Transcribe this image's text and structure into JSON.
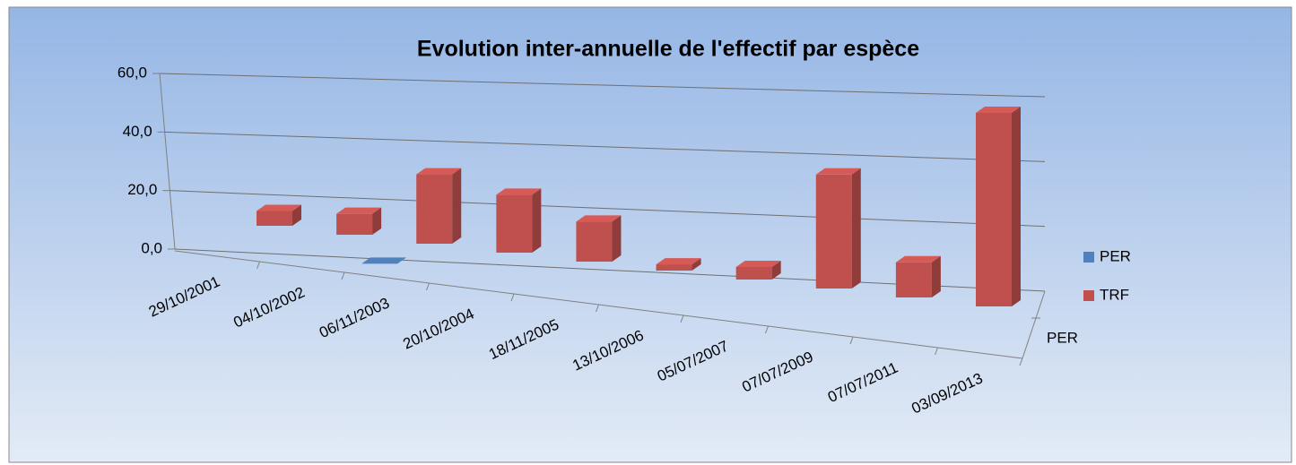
{
  "chart_data": {
    "type": "bar3d",
    "title": "Evolution inter-annuelle de l'effectif par espèce",
    "categories": [
      "29/10/2001",
      "04/10/2002",
      "06/11/2003",
      "20/10/2004",
      "18/11/2005",
      "13/10/2006",
      "05/07/2007",
      "07/07/2009",
      "07/07/2011",
      "03/09/2013"
    ],
    "series": [
      {
        "name": "PER",
        "color": "#4f81bd",
        "values": [
          null,
          0,
          null,
          null,
          null,
          null,
          null,
          null,
          null,
          null
        ]
      },
      {
        "name": "TRF",
        "color": "#c0504d",
        "values": [
          5,
          7,
          23,
          19,
          13,
          2,
          4,
          36,
          11,
          60
        ]
      }
    ],
    "ylim": [
      0,
      60
    ],
    "yticks": [
      {
        "value": 0,
        "label": "0,0"
      },
      {
        "value": 20,
        "label": "20,0"
      },
      {
        "value": 40,
        "label": "40,0"
      },
      {
        "value": 60,
        "label": "60,0"
      }
    ],
    "grid": true,
    "legend": "right"
  }
}
